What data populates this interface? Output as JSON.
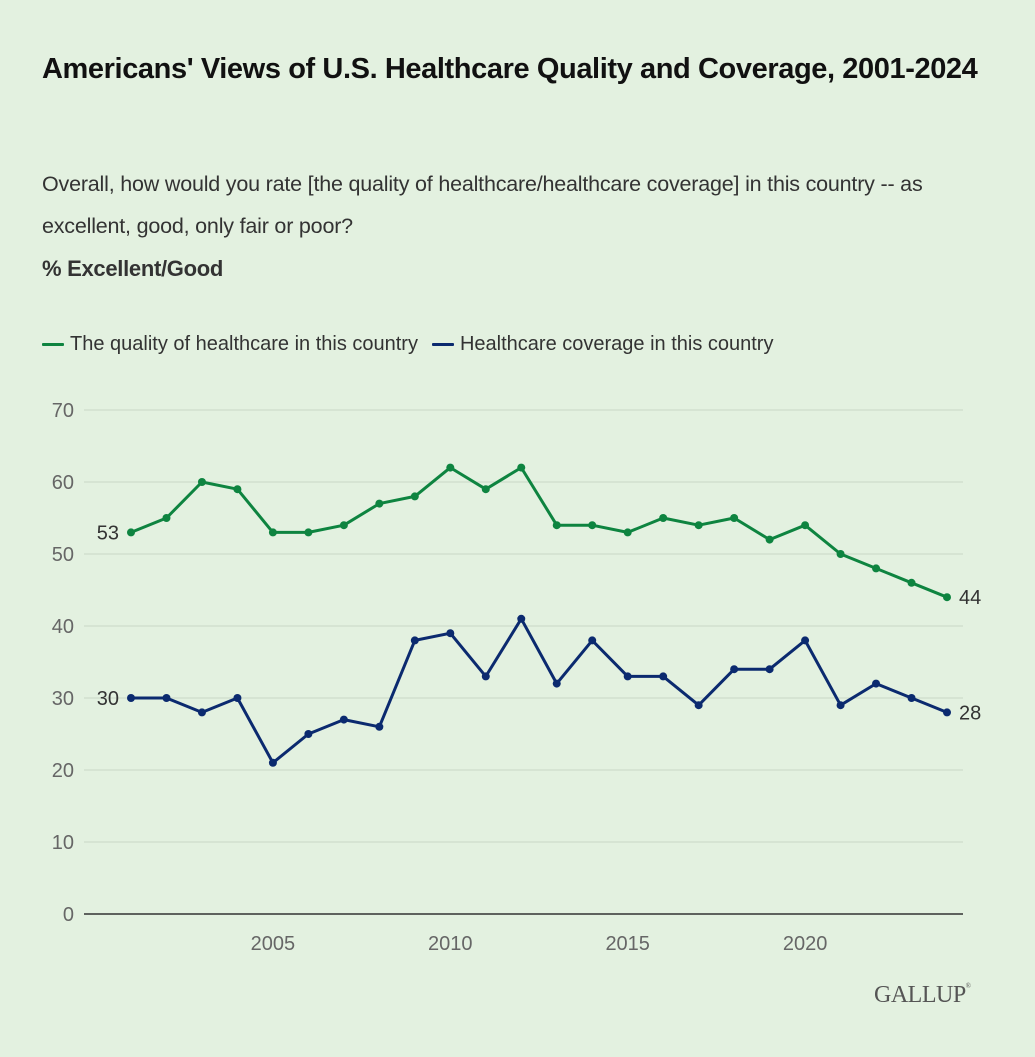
{
  "header": {
    "title": "Americans' Views of U.S. Healthcare Quality and Coverage, 2001-2024",
    "subtitle": "Overall, how would you rate [the quality of healthcare/healthcare coverage] in this country -- as excellent, good, only fair or poor?",
    "unit_label": "% Excellent/Good"
  },
  "footer": {
    "logo_text": "GALLUP"
  },
  "chart_data": {
    "type": "line",
    "title": "Americans' Views of U.S. Healthcare Quality and Coverage, 2001-2024",
    "subtitle": "Overall, how would you rate [the quality of healthcare/healthcare coverage] in this country -- as excellent, good, only fair or poor?",
    "ylabel": "% Excellent/Good",
    "xlabel": "",
    "x": [
      2001,
      2002,
      2003,
      2004,
      2005,
      2006,
      2007,
      2008,
      2009,
      2010,
      2011,
      2012,
      2013,
      2014,
      2015,
      2016,
      2017,
      2018,
      2019,
      2020,
      2021,
      2022,
      2023,
      2024
    ],
    "xlim": [
      2001,
      2024
    ],
    "x_ticks": [
      2005,
      2010,
      2015,
      2020
    ],
    "x_tick_labels": [
      "2005",
      "2010",
      "2015",
      "2020"
    ],
    "ylim": [
      0,
      70
    ],
    "y_ticks": [
      0,
      10,
      20,
      30,
      40,
      50,
      60,
      70
    ],
    "y_tick_labels": [
      "0",
      "10",
      "20",
      "30",
      "40",
      "50",
      "60",
      "70"
    ],
    "grid": true,
    "legend_position": "top-left",
    "series": [
      {
        "name": "The quality of healthcare in this country",
        "color": "#0e8440",
        "values": [
          53,
          55,
          60,
          59,
          53,
          53,
          54,
          57,
          58,
          62,
          59,
          62,
          54,
          54,
          53,
          55,
          54,
          55,
          52,
          54,
          50,
          48,
          46,
          44
        ],
        "start_label": "53",
        "end_label": "44"
      },
      {
        "name": "Healthcare coverage in this country",
        "color": "#0b2a6f",
        "values": [
          30,
          30,
          28,
          30,
          21,
          25,
          27,
          26,
          38,
          39,
          33,
          41,
          32,
          38,
          33,
          33,
          29,
          34,
          34,
          38,
          29,
          32,
          30,
          28
        ],
        "start_label": "30",
        "end_label": "28"
      }
    ]
  }
}
